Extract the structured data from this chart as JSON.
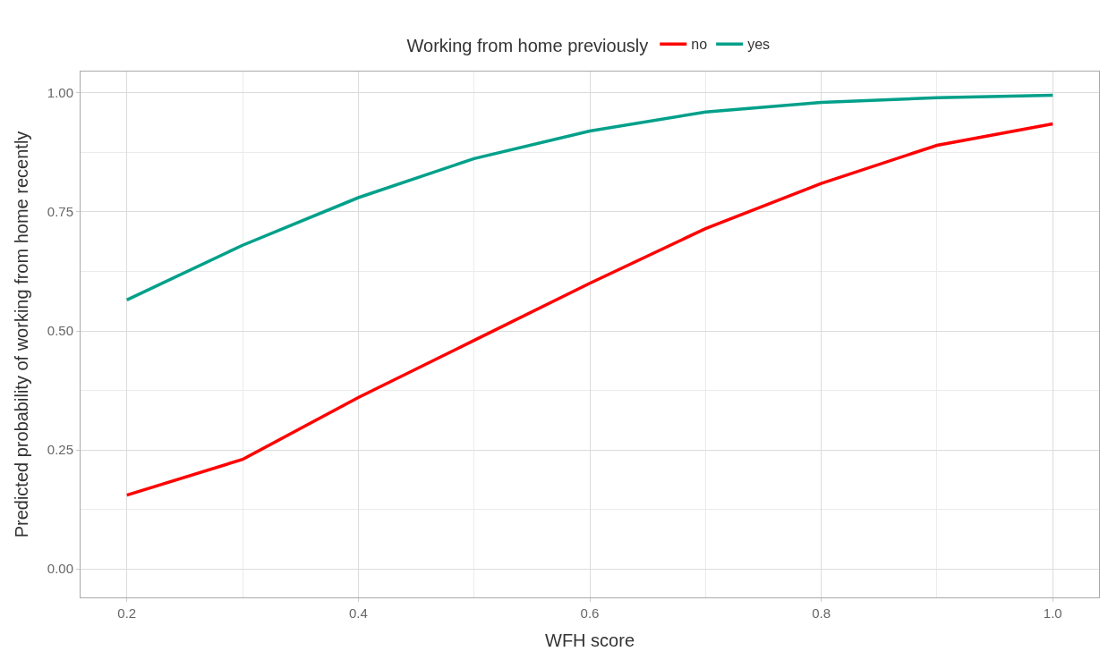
{
  "chart_data": {
    "type": "line",
    "xlabel": "WFH score",
    "ylabel": "Predicted probability of working from home recently",
    "legend_title": "Working from home previously",
    "x": [
      0.2,
      0.3,
      0.4,
      0.5,
      0.6,
      0.7,
      0.8,
      0.9,
      1.0
    ],
    "series": [
      {
        "name": "no",
        "color": "#ff0000",
        "values": [
          0.155,
          0.23,
          0.36,
          0.48,
          0.6,
          0.715,
          0.81,
          0.89,
          0.935
        ]
      },
      {
        "name": "yes",
        "color": "#00a08a",
        "values": [
          0.565,
          0.68,
          0.78,
          0.862,
          0.92,
          0.96,
          0.98,
          0.99,
          0.995
        ]
      }
    ],
    "xlim": [
      0.16,
      1.04
    ],
    "ylim": [
      -0.06,
      1.045
    ],
    "xticks": [
      {
        "value": 0.2,
        "label": "0.2"
      },
      {
        "value": 0.4,
        "label": "0.4"
      },
      {
        "value": 0.6,
        "label": "0.6"
      },
      {
        "value": 0.8,
        "label": "0.8"
      },
      {
        "value": 1.0,
        "label": "1.0"
      }
    ],
    "yticks": [
      {
        "value": 0,
        "label": "0.00"
      },
      {
        "value": 0.25,
        "label": "0.25"
      },
      {
        "value": 0.5,
        "label": "0.50"
      },
      {
        "value": 0.75,
        "label": "0.75"
      },
      {
        "value": 1.0,
        "label": "1.00"
      }
    ],
    "grid": true,
    "legend": "top",
    "marker": "none",
    "line_style": "solid"
  }
}
